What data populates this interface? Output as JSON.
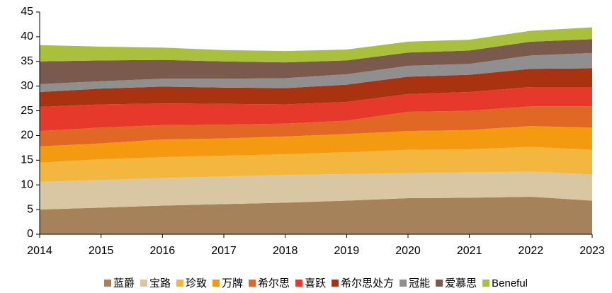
{
  "chart_data": {
    "type": "stacked_area",
    "x": [
      2014,
      2015,
      2016,
      2017,
      2018,
      2019,
      2020,
      2021,
      2022,
      2023
    ],
    "xlim": [
      2014,
      2023
    ],
    "xticks": [
      2014,
      2015,
      2016,
      2017,
      2018,
      2019,
      2020,
      2021,
      2022,
      2023
    ],
    "ylim": [
      0,
      45
    ],
    "yticks": [
      0,
      5,
      10,
      15,
      20,
      25,
      30,
      35,
      40,
      45
    ],
    "legend": "bottom",
    "series": [
      {
        "name": "蓝爵",
        "color": "#a5825a",
        "values": [
          5.0,
          5.4,
          5.8,
          6.1,
          6.4,
          6.8,
          7.3,
          7.4,
          7.6,
          6.8
        ]
      },
      {
        "name": "宝路",
        "color": "#d9c7a4",
        "values": [
          5.6,
          5.6,
          5.6,
          5.6,
          5.6,
          5.4,
          5.1,
          5.1,
          5.1,
          5.3
        ]
      },
      {
        "name": "珍致",
        "color": "#f3b63f",
        "values": [
          3.9,
          4.2,
          4.2,
          4.2,
          4.2,
          4.4,
          4.7,
          4.7,
          5.0,
          5.0
        ]
      },
      {
        "name": "万牌",
        "color": "#f39a10",
        "values": [
          3.3,
          3.2,
          3.6,
          3.5,
          3.6,
          3.7,
          3.8,
          3.9,
          4.2,
          4.5
        ]
      },
      {
        "name": "希尔思",
        "color": "#e06824",
        "values": [
          3.1,
          3.2,
          2.9,
          2.8,
          2.6,
          2.7,
          3.9,
          3.9,
          4.0,
          4.3
        ]
      },
      {
        "name": "喜跃",
        "color": "#e6392b",
        "values": [
          4.9,
          4.7,
          4.4,
          4.2,
          3.9,
          3.8,
          3.6,
          3.8,
          3.9,
          3.9
        ]
      },
      {
        "name": "希尔思处方",
        "color": "#a93210",
        "values": [
          3.0,
          3.2,
          3.4,
          3.3,
          3.3,
          3.5,
          3.5,
          3.5,
          3.7,
          3.8
        ]
      },
      {
        "name": "冠能",
        "color": "#8f8f8f",
        "values": [
          1.6,
          1.5,
          1.6,
          1.8,
          2.0,
          2.1,
          2.2,
          2.2,
          2.7,
          3.1
        ]
      },
      {
        "name": "爱慕思",
        "color": "#7a5a4c",
        "values": [
          4.6,
          4.2,
          3.8,
          3.5,
          3.2,
          2.8,
          2.7,
          2.7,
          2.8,
          2.8
        ]
      },
      {
        "name": "Beneful",
        "color": "#a8c03c",
        "values": [
          3.3,
          2.8,
          2.5,
          2.3,
          2.3,
          2.2,
          2.2,
          2.2,
          2.2,
          2.4
        ]
      }
    ]
  }
}
